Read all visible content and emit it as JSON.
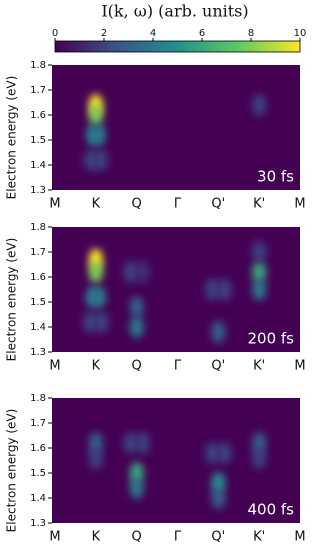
{
  "colorbar": {
    "title": "I(k, ω) (arb. units)",
    "lim": [
      0,
      10
    ],
    "ticks": [
      0,
      2,
      4,
      6,
      8,
      10
    ],
    "colormap": "viridis"
  },
  "chart_data": [
    {
      "type": "heatmap",
      "label": "30 fs",
      "ylabel": "Electron energy (eV)",
      "categories": [
        "M",
        "K",
        "Q",
        "Γ",
        "Q'",
        "K'",
        "M"
      ],
      "ylim": [
        1.3,
        1.8
      ],
      "yticks": [
        1.3,
        1.4,
        1.5,
        1.6,
        1.7,
        1.8
      ],
      "features": [
        {
          "x": 1,
          "y": 1.64,
          "value": 10
        },
        {
          "x": 1,
          "y": 1.6,
          "value": 8
        },
        {
          "x": 0.93,
          "y": 1.52,
          "value": 4
        },
        {
          "x": 1.07,
          "y": 1.52,
          "value": 4
        },
        {
          "x": 0.88,
          "y": 1.42,
          "value": 2
        },
        {
          "x": 1.12,
          "y": 1.42,
          "value": 2
        },
        {
          "x": 5,
          "y": 1.64,
          "value": 2
        }
      ]
    },
    {
      "type": "heatmap",
      "label": "200 fs",
      "ylabel": "Electron energy (eV)",
      "categories": [
        "M",
        "K",
        "Q",
        "Γ",
        "Q'",
        "K'",
        "M"
      ],
      "ylim": [
        1.3,
        1.8
      ],
      "yticks": [
        1.3,
        1.4,
        1.5,
        1.6,
        1.7,
        1.8
      ],
      "features": [
        {
          "x": 1,
          "y": 1.67,
          "value": 10
        },
        {
          "x": 1,
          "y": 1.62,
          "value": 8
        },
        {
          "x": 0.92,
          "y": 1.52,
          "value": 4
        },
        {
          "x": 1.08,
          "y": 1.52,
          "value": 4
        },
        {
          "x": 0.86,
          "y": 1.42,
          "value": 2
        },
        {
          "x": 1.14,
          "y": 1.42,
          "value": 2
        },
        {
          "x": 2,
          "y": 1.4,
          "value": 4
        },
        {
          "x": 2,
          "y": 1.48,
          "value": 3
        },
        {
          "x": 1.85,
          "y": 1.62,
          "value": 2
        },
        {
          "x": 2.15,
          "y": 1.62,
          "value": 1.5
        },
        {
          "x": 4,
          "y": 1.38,
          "value": 3
        },
        {
          "x": 3.85,
          "y": 1.55,
          "value": 2
        },
        {
          "x": 4.15,
          "y": 1.55,
          "value": 2
        },
        {
          "x": 5,
          "y": 1.62,
          "value": 6
        },
        {
          "x": 5,
          "y": 1.55,
          "value": 4
        },
        {
          "x": 5,
          "y": 1.7,
          "value": 2
        }
      ]
    },
    {
      "type": "heatmap",
      "label": "400 fs",
      "ylabel": "Electron energy (eV)",
      "categories": [
        "M",
        "K",
        "Q",
        "Γ",
        "Q'",
        "K'",
        "M"
      ],
      "ylim": [
        1.3,
        1.8
      ],
      "yticks": [
        1.3,
        1.4,
        1.5,
        1.6,
        1.7,
        1.8
      ],
      "features": [
        {
          "x": 1,
          "y": 1.62,
          "value": 3
        },
        {
          "x": 1,
          "y": 1.56,
          "value": 2
        },
        {
          "x": 2,
          "y": 1.5,
          "value": 6
        },
        {
          "x": 2,
          "y": 1.44,
          "value": 4
        },
        {
          "x": 1.85,
          "y": 1.62,
          "value": 2
        },
        {
          "x": 2.15,
          "y": 1.62,
          "value": 2
        },
        {
          "x": 4,
          "y": 1.46,
          "value": 5
        },
        {
          "x": 4,
          "y": 1.4,
          "value": 3
        },
        {
          "x": 3.85,
          "y": 1.58,
          "value": 2
        },
        {
          "x": 4.15,
          "y": 1.58,
          "value": 2
        },
        {
          "x": 5,
          "y": 1.62,
          "value": 3
        },
        {
          "x": 5,
          "y": 1.56,
          "value": 2
        }
      ]
    }
  ]
}
